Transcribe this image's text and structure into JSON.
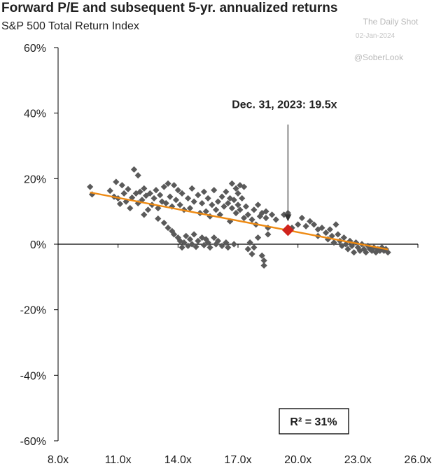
{
  "chart_data": {
    "type": "scatter",
    "title": "Forward P/E and subsequent 5-yr. annualized returns",
    "subtitle": "S&P 500 Total Return Index",
    "watermark": {
      "brand": "The Daily Shot",
      "date": "02-Jan-2024",
      "handle": "@SoberLook"
    },
    "xlabel": "",
    "ylabel": "",
    "xlim": [
      8,
      26
    ],
    "ylim": [
      -60,
      60
    ],
    "x_ticks": [
      {
        "value": 8,
        "label": "8.0x"
      },
      {
        "value": 11,
        "label": "11.0x"
      },
      {
        "value": 14,
        "label": "14.0x"
      },
      {
        "value": 17,
        "label": "17.0x"
      },
      {
        "value": 20,
        "label": "20.0x"
      },
      {
        "value": 23,
        "label": "23.0x"
      },
      {
        "value": 26,
        "label": "26.0x"
      }
    ],
    "y_ticks": [
      {
        "value": 60,
        "label": "60%"
      },
      {
        "value": 40,
        "label": "40%"
      },
      {
        "value": 20,
        "label": "20%"
      },
      {
        "value": 0,
        "label": "0%"
      },
      {
        "value": -20,
        "label": "-20%"
      },
      {
        "value": -40,
        "label": "-40%"
      },
      {
        "value": -60,
        "label": "-60%"
      }
    ],
    "grid": false,
    "series": [
      {
        "color": "#5a5a5a",
        "marker": "diamond",
        "points": [
          [
            9.6,
            17.5
          ],
          [
            9.7,
            15.2
          ],
          [
            10.6,
            16.3
          ],
          [
            10.8,
            14.5
          ],
          [
            10.9,
            19.0
          ],
          [
            11.0,
            14.0
          ],
          [
            11.1,
            12.3
          ],
          [
            11.2,
            18.0
          ],
          [
            11.3,
            15.5
          ],
          [
            11.4,
            13.0
          ],
          [
            11.5,
            16.8
          ],
          [
            11.6,
            11.0
          ],
          [
            11.7,
            14.2
          ],
          [
            11.8,
            22.8
          ],
          [
            11.9,
            15.5
          ],
          [
            12.0,
            21.0
          ],
          [
            12.0,
            12.5
          ],
          [
            12.1,
            16.0
          ],
          [
            12.2,
            13.5
          ],
          [
            12.3,
            9.0
          ],
          [
            12.3,
            17.0
          ],
          [
            12.4,
            14.8
          ],
          [
            12.5,
            10.5
          ],
          [
            12.6,
            15.5
          ],
          [
            12.7,
            12.0
          ],
          [
            12.8,
            14.0
          ],
          [
            12.9,
            16.5
          ],
          [
            13.0,
            11.0
          ],
          [
            13.0,
            7.8
          ],
          [
            13.1,
            15.0
          ],
          [
            13.2,
            13.0
          ],
          [
            13.3,
            6.5
          ],
          [
            13.3,
            17.5
          ],
          [
            13.4,
            12.5
          ],
          [
            13.5,
            5.0
          ],
          [
            13.5,
            18.5
          ],
          [
            13.6,
            14.5
          ],
          [
            13.7,
            4.0
          ],
          [
            13.7,
            11.5
          ],
          [
            13.8,
            3.0
          ],
          [
            13.8,
            18.0
          ],
          [
            13.9,
            13.5
          ],
          [
            14.0,
            2.0
          ],
          [
            14.0,
            16.5
          ],
          [
            14.1,
            12.0
          ],
          [
            14.1,
            1.0
          ],
          [
            14.2,
            -1.0
          ],
          [
            14.2,
            15.5
          ],
          [
            14.3,
            0.5
          ],
          [
            14.3,
            10.5
          ],
          [
            14.4,
            2.5
          ],
          [
            14.5,
            14.0
          ],
          [
            14.5,
            -0.5
          ],
          [
            14.6,
            11.0
          ],
          [
            14.6,
            1.5
          ],
          [
            14.7,
            17.0
          ],
          [
            14.7,
            0.0
          ],
          [
            14.8,
            3.0
          ],
          [
            14.8,
            13.0
          ],
          [
            14.9,
            -0.8
          ],
          [
            15.0,
            15.0
          ],
          [
            15.0,
            1.0
          ],
          [
            15.1,
            9.5
          ],
          [
            15.2,
            2.0
          ],
          [
            15.2,
            12.5
          ],
          [
            15.3,
            -0.3
          ],
          [
            15.3,
            16.0
          ],
          [
            15.4,
            1.5
          ],
          [
            15.4,
            10.0
          ],
          [
            15.5,
            0.5
          ],
          [
            15.5,
            14.0
          ],
          [
            15.6,
            8.5
          ],
          [
            15.6,
            -1.0
          ],
          [
            15.7,
            12.0
          ],
          [
            15.8,
            2.0
          ],
          [
            15.8,
            16.5
          ],
          [
            15.9,
            10.5
          ],
          [
            15.9,
            0.0
          ],
          [
            16.0,
            13.0
          ],
          [
            16.0,
            1.0
          ],
          [
            16.1,
            9.0
          ],
          [
            16.2,
            14.5
          ],
          [
            16.2,
            -0.5
          ],
          [
            16.3,
            11.5
          ],
          [
            16.4,
            0.5
          ],
          [
            16.4,
            16.0
          ],
          [
            16.5,
            12.5
          ],
          [
            16.5,
            -1.0
          ],
          [
            16.6,
            7.0
          ],
          [
            16.6,
            14.0
          ],
          [
            16.7,
            11.0
          ],
          [
            16.7,
            18.5
          ],
          [
            16.8,
            13.5
          ],
          [
            16.8,
            0.0
          ],
          [
            16.9,
            17.0
          ],
          [
            16.9,
            9.5
          ],
          [
            17.0,
            12.0
          ],
          [
            17.0,
            15.5
          ],
          [
            17.1,
            10.5
          ],
          [
            17.1,
            18.0
          ],
          [
            17.2,
            14.0
          ],
          [
            17.3,
            8.0
          ],
          [
            17.3,
            17.5
          ],
          [
            17.4,
            11.5
          ],
          [
            17.5,
            -1.5
          ],
          [
            17.5,
            9.0
          ],
          [
            17.6,
            0.5
          ],
          [
            17.7,
            -3.0
          ],
          [
            17.7,
            7.5
          ],
          [
            17.8,
            -1.0
          ],
          [
            17.8,
            10.5
          ],
          [
            17.9,
            6.0
          ],
          [
            18.0,
            12.0
          ],
          [
            18.0,
            2.0
          ],
          [
            18.1,
            8.5
          ],
          [
            18.2,
            -3.5
          ],
          [
            18.2,
            9.5
          ],
          [
            18.3,
            -6.5
          ],
          [
            18.3,
            -5.0
          ],
          [
            18.4,
            8.0
          ],
          [
            18.4,
            10.0
          ],
          [
            18.5,
            5.0
          ],
          [
            18.5,
            3.0
          ],
          [
            18.7,
            9.0
          ],
          [
            18.9,
            7.5
          ],
          [
            19.3,
            9.0
          ],
          [
            19.5,
            9.5
          ],
          [
            19.7,
            5.0
          ],
          [
            20.0,
            6.0
          ],
          [
            20.2,
            8.0
          ],
          [
            20.4,
            5.5
          ],
          [
            20.6,
            7.0
          ],
          [
            20.8,
            6.0
          ],
          [
            21.0,
            4.5
          ],
          [
            21.0,
            2.5
          ],
          [
            21.2,
            5.0
          ],
          [
            21.4,
            3.5
          ],
          [
            21.5,
            1.5
          ],
          [
            21.6,
            4.5
          ],
          [
            21.7,
            2.5
          ],
          [
            21.8,
            0.5
          ],
          [
            21.9,
            6.0
          ],
          [
            22.0,
            3.0
          ],
          [
            22.1,
            1.0
          ],
          [
            22.2,
            -0.5
          ],
          [
            22.3,
            2.0
          ],
          [
            22.4,
            0.0
          ],
          [
            22.5,
            -1.5
          ],
          [
            22.6,
            1.0
          ],
          [
            22.7,
            -0.5
          ],
          [
            22.8,
            -2.5
          ],
          [
            22.9,
            0.5
          ],
          [
            23.0,
            -1.0
          ],
          [
            23.1,
            -2.0
          ],
          [
            23.2,
            0.0
          ],
          [
            23.3,
            -1.5
          ],
          [
            23.4,
            -2.5
          ],
          [
            23.5,
            -0.5
          ],
          [
            23.6,
            -1.5
          ],
          [
            23.7,
            -2.0
          ],
          [
            23.8,
            -1.0
          ],
          [
            23.9,
            -2.5
          ],
          [
            24.0,
            -1.5
          ],
          [
            24.1,
            -2.0
          ],
          [
            24.2,
            -1.0
          ],
          [
            24.3,
            -2.0
          ],
          [
            24.4,
            -1.5
          ],
          [
            24.5,
            -2.5
          ]
        ]
      }
    ],
    "highlight": {
      "x": 19.5,
      "y": 4.3,
      "color": "#d0231c",
      "label": "Dec. 31, 2023: 19.5x"
    },
    "trendline": {
      "x": [
        9.6,
        24.5
      ],
      "y": [
        15.8,
        -1.6
      ],
      "color": "#ee8a12"
    },
    "annotation_box": {
      "label": "R² = 31%"
    }
  }
}
